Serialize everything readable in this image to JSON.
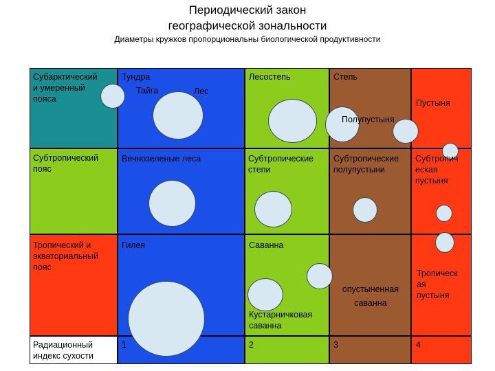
{
  "title_line1": "Периодический закон",
  "title_line2": "географической зональности",
  "subtitle": "Диаметры кружков пропорциональны биологической продуктивности",
  "rows": {
    "r1": "Субарктический\nи умеренный\nпояса",
    "r2": "Субтропический\nпояс",
    "r3": "Тропический и\nэкваториальный\nпояс",
    "r4": "Радиационный\nиндекс сухости"
  },
  "zones": {
    "tundra": "Тундра",
    "taiga": "Тайга",
    "les": "Лес",
    "lesostep": "Лесостепь",
    "step": "Степь",
    "polupustynya": "Полупустыня",
    "pustynya": "Пустыня",
    "evergreen": "Вечнозеленые леса",
    "subtrop_steppe": "Субтропические\nстепи",
    "subtrop_semidesert": "Субтропические\nполупустыни",
    "subtrop_desert": "Субтропич\nеская\nпустыня",
    "gileya": "Гилея",
    "savanna": "Саванна",
    "shrub_savanna": "Кустарничковая\nсаванна",
    "desert_savanna": "опустыненная\nсаванна",
    "trop_desert": "Тропическ\nая\nпустыня"
  },
  "index": {
    "i1": "1",
    "i2": "2",
    "i3": "3",
    "i4": "4"
  },
  "colors": {
    "teal": "#1a8f93",
    "green": "#8ccc1c",
    "blue": "#1a4fe8",
    "brown": "#9c5a31",
    "red": "#ff3a12"
  }
}
